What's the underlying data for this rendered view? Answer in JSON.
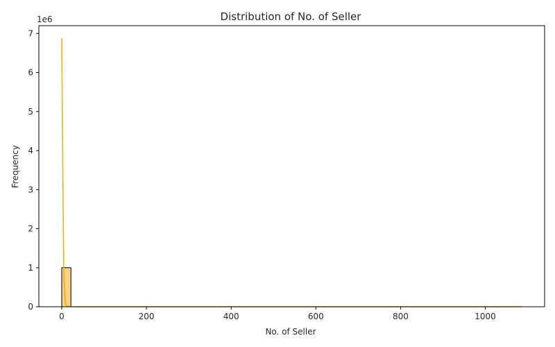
{
  "chart_data": {
    "type": "bar",
    "title": "Distribution of No. of Seller",
    "xlabel": "No. of Seller",
    "ylabel": "Frequency",
    "y_scale_label": "1e6",
    "xlim": [
      -54,
      1140
    ],
    "ylim": [
      0,
      7200000
    ],
    "x_ticks": [
      0,
      200,
      400,
      600,
      800,
      1000
    ],
    "y_ticks": [
      0,
      1000000,
      2000000,
      3000000,
      4000000,
      5000000,
      6000000,
      7000000
    ],
    "x_tick_labels": [
      "0",
      "200",
      "400",
      "600",
      "800",
      "1000"
    ],
    "y_tick_labels": [
      "0",
      "1",
      "2",
      "3",
      "4",
      "5",
      "6",
      "7"
    ],
    "bar_color": "#f5c361",
    "bar_edge_color": "#000000",
    "kde_color": "#ffa500",
    "bin_width": 21.7,
    "bins": [
      {
        "x0": 0,
        "x1": 21.7,
        "count": 1000000
      }
    ],
    "kde": {
      "x": [
        0,
        3,
        5,
        8,
        10,
        15,
        20,
        40,
        100,
        200,
        400,
        600,
        800,
        1000,
        1085
      ],
      "y": [
        6880000,
        3000000,
        800000,
        150000,
        40000,
        8000,
        2000,
        500,
        200,
        150,
        100,
        80,
        60,
        40,
        30
      ]
    },
    "grid": false
  }
}
